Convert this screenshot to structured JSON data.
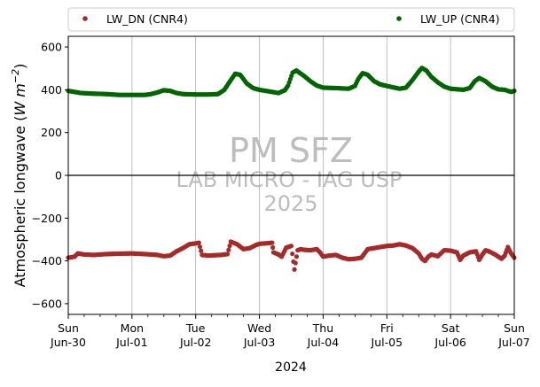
{
  "chart_data": {
    "type": "scatter",
    "ylabel_main": "Atmospheric longwave (",
    "ylabel_unit": "W m",
    "ylabel_exp": "−2",
    "ylabel_close": ")",
    "xlabel": "2024",
    "ylim": [
      -650,
      650
    ],
    "yticks": [
      -600,
      -400,
      -200,
      0,
      200,
      400,
      600
    ],
    "ytick_labels": [
      "−600",
      "−400",
      "−200",
      "0",
      "200",
      "400",
      "600"
    ],
    "xlim_days": [
      0,
      7
    ],
    "xticks": [
      {
        "day": "Sun",
        "date": "Jun-30"
      },
      {
        "day": "Mon",
        "date": "Jul-01"
      },
      {
        "day": "Tue",
        "date": "Jul-02"
      },
      {
        "day": "Wed",
        "date": "Jul-03"
      },
      {
        "day": "Thu",
        "date": "Jul-04"
      },
      {
        "day": "Fri",
        "date": "Jul-05"
      },
      {
        "day": "Sat",
        "date": "Jul-06"
      },
      {
        "day": "Sun",
        "date": "Jul-07"
      }
    ],
    "grid": "vertical",
    "zero_line": true,
    "legend_position": "top",
    "watermark": [
      "PM SFZ",
      "LAB MICRO - IAG USP",
      "2025"
    ],
    "series": [
      {
        "name": "LW_DN (CNR4)",
        "color": "#a52a2a",
        "points": [
          [
            0,
            -385
          ],
          [
            0.1,
            -380
          ],
          [
            0.15,
            -365
          ],
          [
            0.25,
            -370
          ],
          [
            0.4,
            -372
          ],
          [
            0.6,
            -368
          ],
          [
            0.8,
            -366
          ],
          [
            1.0,
            -365
          ],
          [
            1.2,
            -368
          ],
          [
            1.4,
            -372
          ],
          [
            1.5,
            -378
          ],
          [
            1.6,
            -375
          ],
          [
            1.7,
            -355
          ],
          [
            1.8,
            -340
          ],
          [
            1.9,
            -322
          ],
          [
            2.0,
            -318
          ],
          [
            2.05,
            -315
          ],
          [
            2.1,
            -372
          ],
          [
            2.2,
            -375
          ],
          [
            2.4,
            -372
          ],
          [
            2.5,
            -368
          ],
          [
            2.55,
            -310
          ],
          [
            2.65,
            -322
          ],
          [
            2.75,
            -345
          ],
          [
            2.85,
            -340
          ],
          [
            2.95,
            -325
          ],
          [
            3.0,
            -320
          ],
          [
            3.1,
            -318
          ],
          [
            3.2,
            -315
          ],
          [
            3.22,
            -360
          ],
          [
            3.3,
            -370
          ],
          [
            3.35,
            -380
          ],
          [
            3.42,
            -338
          ],
          [
            3.5,
            -330
          ],
          [
            3.55,
            -440
          ],
          [
            3.6,
            -350
          ],
          [
            3.65,
            -345
          ],
          [
            3.7,
            -348
          ],
          [
            3.8,
            -350
          ],
          [
            3.9,
            -345
          ],
          [
            3.95,
            -360
          ],
          [
            4.0,
            -380
          ],
          [
            4.1,
            -375
          ],
          [
            4.2,
            -372
          ],
          [
            4.3,
            -385
          ],
          [
            4.4,
            -392
          ],
          [
            4.5,
            -390
          ],
          [
            4.6,
            -385
          ],
          [
            4.7,
            -345
          ],
          [
            4.8,
            -340
          ],
          [
            4.9,
            -335
          ],
          [
            5.0,
            -330
          ],
          [
            5.1,
            -328
          ],
          [
            5.2,
            -322
          ],
          [
            5.3,
            -328
          ],
          [
            5.4,
            -340
          ],
          [
            5.5,
            -365
          ],
          [
            5.55,
            -390
          ],
          [
            5.6,
            -400
          ],
          [
            5.65,
            -380
          ],
          [
            5.7,
            -370
          ],
          [
            5.8,
            -378
          ],
          [
            5.9,
            -350
          ],
          [
            6.0,
            -352
          ],
          [
            6.1,
            -360
          ],
          [
            6.15,
            -395
          ],
          [
            6.2,
            -375
          ],
          [
            6.3,
            -360
          ],
          [
            6.4,
            -355
          ],
          [
            6.45,
            -395
          ],
          [
            6.5,
            -370
          ],
          [
            6.55,
            -350
          ],
          [
            6.6,
            -355
          ],
          [
            6.7,
            -370
          ],
          [
            6.8,
            -390
          ],
          [
            6.85,
            -375
          ],
          [
            6.9,
            -335
          ],
          [
            6.95,
            -365
          ],
          [
            7.0,
            -385
          ]
        ]
      },
      {
        "name": "LW_UP (CNR4)",
        "color": "#006400",
        "points": [
          [
            0,
            395
          ],
          [
            0.2,
            385
          ],
          [
            0.4,
            382
          ],
          [
            0.6,
            380
          ],
          [
            0.8,
            376
          ],
          [
            1.0,
            376
          ],
          [
            1.2,
            376
          ],
          [
            1.3,
            380
          ],
          [
            1.4,
            388
          ],
          [
            1.5,
            398
          ],
          [
            1.6,
            395
          ],
          [
            1.7,
            385
          ],
          [
            1.8,
            380
          ],
          [
            2.0,
            378
          ],
          [
            2.2,
            378
          ],
          [
            2.35,
            380
          ],
          [
            2.45,
            400
          ],
          [
            2.55,
            445
          ],
          [
            2.62,
            475
          ],
          [
            2.7,
            470
          ],
          [
            2.8,
            430
          ],
          [
            2.9,
            408
          ],
          [
            3.0,
            400
          ],
          [
            3.2,
            390
          ],
          [
            3.3,
            385
          ],
          [
            3.4,
            398
          ],
          [
            3.45,
            420
          ],
          [
            3.52,
            480
          ],
          [
            3.58,
            490
          ],
          [
            3.7,
            465
          ],
          [
            3.8,
            440
          ],
          [
            3.9,
            420
          ],
          [
            4.0,
            410
          ],
          [
            4.2,
            408
          ],
          [
            4.4,
            405
          ],
          [
            4.5,
            418
          ],
          [
            4.55,
            450
          ],
          [
            4.62,
            478
          ],
          [
            4.7,
            470
          ],
          [
            4.8,
            440
          ],
          [
            4.9,
            425
          ],
          [
            5.0,
            418
          ],
          [
            5.2,
            405
          ],
          [
            5.3,
            410
          ],
          [
            5.4,
            445
          ],
          [
            5.5,
            485
          ],
          [
            5.55,
            502
          ],
          [
            5.62,
            490
          ],
          [
            5.7,
            460
          ],
          [
            5.8,
            435
          ],
          [
            5.9,
            415
          ],
          [
            6.0,
            405
          ],
          [
            6.2,
            400
          ],
          [
            6.3,
            408
          ],
          [
            6.38,
            440
          ],
          [
            6.45,
            455
          ],
          [
            6.55,
            440
          ],
          [
            6.65,
            415
          ],
          [
            6.75,
            402
          ],
          [
            6.85,
            400
          ],
          [
            6.95,
            390
          ],
          [
            7.0,
            395
          ]
        ]
      }
    ]
  }
}
